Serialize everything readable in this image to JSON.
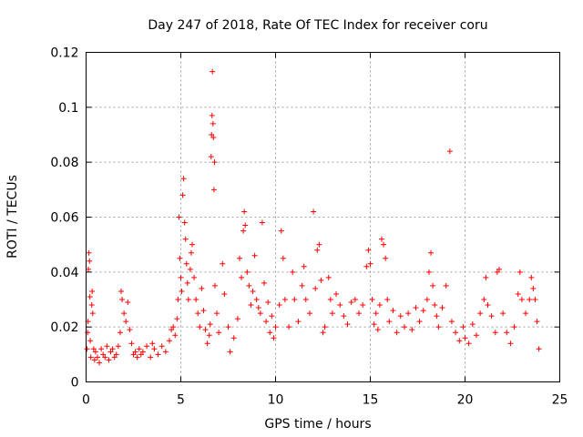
{
  "chart_data": {
    "type": "scatter",
    "title": "Day 247 of 2018, Rate Of TEC Index for receiver coru",
    "xlabel": "GPS time / hours",
    "ylabel": "ROTI / TECUs",
    "xlim": [
      0,
      25
    ],
    "ylim": [
      0,
      0.12
    ],
    "xticks": [
      0,
      5,
      10,
      15,
      20,
      25
    ],
    "yticks": [
      0,
      0.02,
      0.04,
      0.06,
      0.08,
      0.1,
      0.12
    ],
    "xtick_labels": [
      "0",
      "5",
      "10",
      "15",
      "20",
      "25"
    ],
    "ytick_labels": [
      "0",
      "0.02",
      "0.04",
      "0.06",
      "0.08",
      "0.1",
      "0.12"
    ],
    "grid": true,
    "marker": "+",
    "color": "#ff0000",
    "points": [
      [
        0.05,
        0.012
      ],
      [
        0.08,
        0.018
      ],
      [
        0.1,
        0.022
      ],
      [
        0.12,
        0.041
      ],
      [
        0.15,
        0.047
      ],
      [
        0.18,
        0.044
      ],
      [
        0.2,
        0.031
      ],
      [
        0.22,
        0.015
      ],
      [
        0.25,
        0.009
      ],
      [
        0.3,
        0.028
      ],
      [
        0.32,
        0.033
      ],
      [
        0.35,
        0.025
      ],
      [
        0.4,
        0.012
      ],
      [
        0.45,
        0.008
      ],
      [
        0.5,
        0.011
      ],
      [
        0.6,
        0.009
      ],
      [
        0.7,
        0.007
      ],
      [
        0.8,
        0.012
      ],
      [
        0.9,
        0.01
      ],
      [
        1.0,
        0.009
      ],
      [
        1.1,
        0.013
      ],
      [
        1.2,
        0.008
      ],
      [
        1.3,
        0.011
      ],
      [
        1.4,
        0.012
      ],
      [
        1.5,
        0.009
      ],
      [
        1.6,
        0.01
      ],
      [
        1.7,
        0.013
      ],
      [
        1.8,
        0.018
      ],
      [
        1.85,
        0.033
      ],
      [
        1.9,
        0.03
      ],
      [
        2.0,
        0.025
      ],
      [
        2.1,
        0.022
      ],
      [
        2.2,
        0.029
      ],
      [
        2.3,
        0.019
      ],
      [
        2.4,
        0.014
      ],
      [
        2.5,
        0.01
      ],
      [
        2.6,
        0.011
      ],
      [
        2.7,
        0.009
      ],
      [
        2.8,
        0.012
      ],
      [
        2.9,
        0.01
      ],
      [
        3.0,
        0.011
      ],
      [
        3.2,
        0.013
      ],
      [
        3.4,
        0.009
      ],
      [
        3.5,
        0.014
      ],
      [
        3.6,
        0.012
      ],
      [
        3.8,
        0.01
      ],
      [
        4.0,
        0.013
      ],
      [
        4.2,
        0.011
      ],
      [
        4.4,
        0.015
      ],
      [
        4.5,
        0.019
      ],
      [
        4.6,
        0.02
      ],
      [
        4.7,
        0.017
      ],
      [
        4.8,
        0.023
      ],
      [
        4.85,
        0.03
      ],
      [
        4.9,
        0.06
      ],
      [
        4.95,
        0.045
      ],
      [
        5.0,
        0.038
      ],
      [
        5.05,
        0.033
      ],
      [
        5.1,
        0.068
      ],
      [
        5.15,
        0.074
      ],
      [
        5.2,
        0.058
      ],
      [
        5.25,
        0.052
      ],
      [
        5.3,
        0.043
      ],
      [
        5.35,
        0.036
      ],
      [
        5.4,
        0.03
      ],
      [
        5.5,
        0.041
      ],
      [
        5.55,
        0.047
      ],
      [
        5.6,
        0.05
      ],
      [
        5.7,
        0.038
      ],
      [
        5.8,
        0.03
      ],
      [
        5.9,
        0.025
      ],
      [
        6.0,
        0.02
      ],
      [
        6.1,
        0.034
      ],
      [
        6.2,
        0.026
      ],
      [
        6.3,
        0.019
      ],
      [
        6.4,
        0.014
      ],
      [
        6.5,
        0.017
      ],
      [
        6.55,
        0.021
      ],
      [
        6.6,
        0.082
      ],
      [
        6.62,
        0.09
      ],
      [
        6.65,
        0.097
      ],
      [
        6.67,
        0.113
      ],
      [
        6.7,
        0.094
      ],
      [
        6.72,
        0.089
      ],
      [
        6.75,
        0.07
      ],
      [
        6.78,
        0.08
      ],
      [
        6.8,
        0.035
      ],
      [
        6.9,
        0.025
      ],
      [
        7.0,
        0.018
      ],
      [
        7.2,
        0.043
      ],
      [
        7.3,
        0.032
      ],
      [
        7.5,
        0.02
      ],
      [
        7.6,
        0.011
      ],
      [
        7.8,
        0.016
      ],
      [
        8.0,
        0.023
      ],
      [
        8.1,
        0.045
      ],
      [
        8.2,
        0.038
      ],
      [
        8.3,
        0.055
      ],
      [
        8.35,
        0.062
      ],
      [
        8.4,
        0.057
      ],
      [
        8.5,
        0.04
      ],
      [
        8.6,
        0.035
      ],
      [
        8.7,
        0.028
      ],
      [
        8.8,
        0.033
      ],
      [
        8.9,
        0.046
      ],
      [
        9.0,
        0.03
      ],
      [
        9.1,
        0.027
      ],
      [
        9.2,
        0.025
      ],
      [
        9.3,
        0.058
      ],
      [
        9.4,
        0.036
      ],
      [
        9.5,
        0.022
      ],
      [
        9.6,
        0.029
      ],
      [
        9.7,
        0.018
      ],
      [
        9.8,
        0.024
      ],
      [
        9.9,
        0.016
      ],
      [
        10.0,
        0.02
      ],
      [
        10.2,
        0.028
      ],
      [
        10.3,
        0.055
      ],
      [
        10.4,
        0.045
      ],
      [
        10.5,
        0.03
      ],
      [
        10.7,
        0.02
      ],
      [
        10.9,
        0.04
      ],
      [
        11.0,
        0.03
      ],
      [
        11.2,
        0.022
      ],
      [
        11.4,
        0.035
      ],
      [
        11.5,
        0.042
      ],
      [
        11.6,
        0.03
      ],
      [
        11.8,
        0.025
      ],
      [
        12.0,
        0.062
      ],
      [
        12.1,
        0.034
      ],
      [
        12.2,
        0.048
      ],
      [
        12.3,
        0.05
      ],
      [
        12.4,
        0.037
      ],
      [
        12.5,
        0.018
      ],
      [
        12.6,
        0.02
      ],
      [
        12.8,
        0.038
      ],
      [
        12.9,
        0.03
      ],
      [
        13.0,
        0.025
      ],
      [
        13.2,
        0.032
      ],
      [
        13.4,
        0.028
      ],
      [
        13.6,
        0.024
      ],
      [
        13.8,
        0.021
      ],
      [
        14.0,
        0.029
      ],
      [
        14.2,
        0.03
      ],
      [
        14.4,
        0.025
      ],
      [
        14.6,
        0.028
      ],
      [
        14.8,
        0.042
      ],
      [
        14.9,
        0.048
      ],
      [
        15.0,
        0.043
      ],
      [
        15.1,
        0.03
      ],
      [
        15.2,
        0.021
      ],
      [
        15.3,
        0.025
      ],
      [
        15.4,
        0.019
      ],
      [
        15.5,
        0.028
      ],
      [
        15.6,
        0.052
      ],
      [
        15.7,
        0.05
      ],
      [
        15.8,
        0.045
      ],
      [
        15.9,
        0.03
      ],
      [
        16.0,
        0.022
      ],
      [
        16.2,
        0.026
      ],
      [
        16.4,
        0.018
      ],
      [
        16.6,
        0.024
      ],
      [
        16.8,
        0.02
      ],
      [
        17.0,
        0.025
      ],
      [
        17.2,
        0.019
      ],
      [
        17.4,
        0.027
      ],
      [
        17.6,
        0.022
      ],
      [
        17.8,
        0.026
      ],
      [
        18.0,
        0.03
      ],
      [
        18.1,
        0.04
      ],
      [
        18.2,
        0.047
      ],
      [
        18.3,
        0.035
      ],
      [
        18.4,
        0.028
      ],
      [
        18.5,
        0.024
      ],
      [
        18.6,
        0.02
      ],
      [
        18.8,
        0.027
      ],
      [
        19.0,
        0.035
      ],
      [
        19.2,
        0.084
      ],
      [
        19.3,
        0.022
      ],
      [
        19.5,
        0.018
      ],
      [
        19.7,
        0.015
      ],
      [
        19.9,
        0.02
      ],
      [
        20.0,
        0.016
      ],
      [
        20.2,
        0.014
      ],
      [
        20.4,
        0.021
      ],
      [
        20.6,
        0.017
      ],
      [
        20.8,
        0.025
      ],
      [
        21.0,
        0.03
      ],
      [
        21.1,
        0.038
      ],
      [
        21.2,
        0.028
      ],
      [
        21.4,
        0.024
      ],
      [
        21.6,
        0.018
      ],
      [
        21.7,
        0.04
      ],
      [
        21.8,
        0.041
      ],
      [
        22.0,
        0.025
      ],
      [
        22.2,
        0.018
      ],
      [
        22.4,
        0.014
      ],
      [
        22.6,
        0.02
      ],
      [
        22.8,
        0.032
      ],
      [
        22.9,
        0.04
      ],
      [
        23.0,
        0.03
      ],
      [
        23.2,
        0.025
      ],
      [
        23.4,
        0.03
      ],
      [
        23.5,
        0.038
      ],
      [
        23.6,
        0.034
      ],
      [
        23.7,
        0.03
      ],
      [
        23.8,
        0.022
      ],
      [
        23.9,
        0.012
      ]
    ]
  }
}
